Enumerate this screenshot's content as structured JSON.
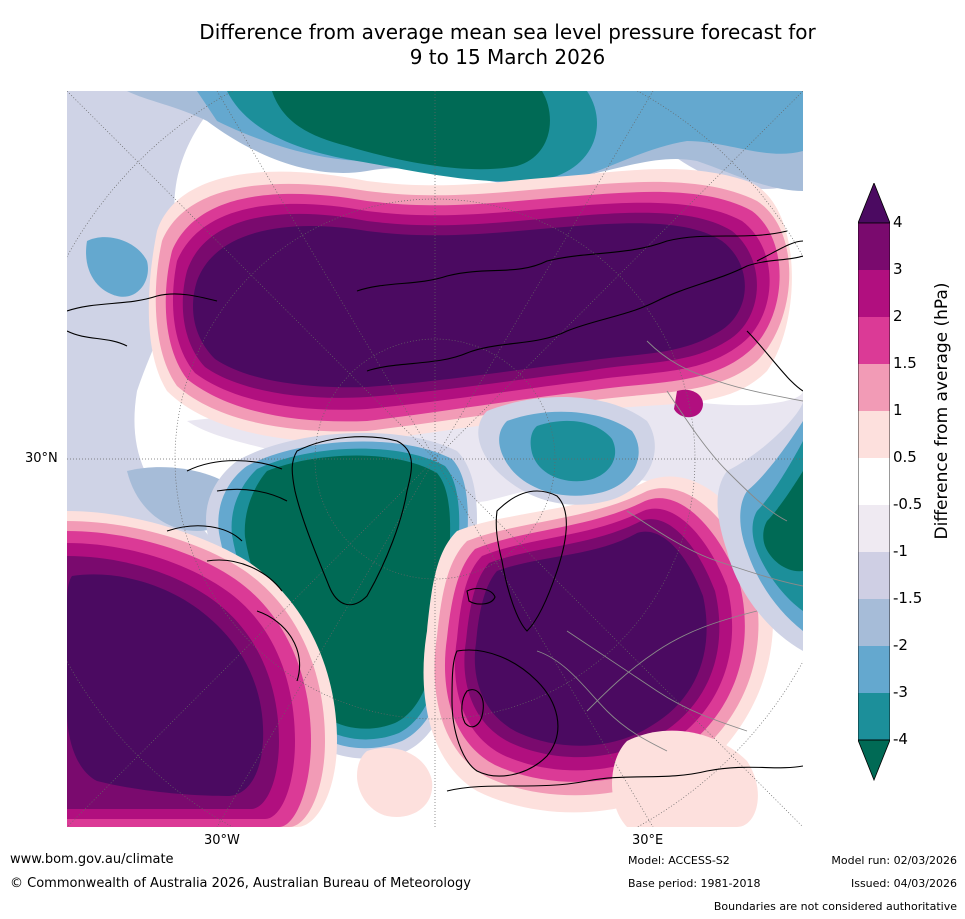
{
  "title": {
    "line1": "Difference from average mean sea level pressure forecast for",
    "line2": "9 to 15 March 2026"
  },
  "map": {
    "projection": "Northern Hemisphere polar stereographic",
    "lat_labels": [
      "30°N"
    ],
    "lon_labels": [
      "30°W",
      "30°E"
    ]
  },
  "colorbar": {
    "label": "Difference from average (hPa)",
    "ticks": [
      "4",
      "3",
      "2",
      "1.5",
      "1",
      "0.5",
      "-0.5",
      "-1",
      "-1.5",
      "-2",
      "-3",
      "-4"
    ],
    "colors": [
      "#7a0a6e",
      "#b10f7f",
      "#db3a96",
      "#f29bb6",
      "#fde0dd",
      "#ffffff",
      "#efeaf2",
      "#cfcfe4",
      "#a6bcd8",
      "#64a8cf",
      "#1c8f9a"
    ],
    "above_color": "#4b0a61",
    "below_color": "#006a55"
  },
  "footer": {
    "website": "www.bom.gov.au/climate",
    "copyright": "© Commonwealth of Australia 2026, Australian Bureau of Meteorology",
    "model": "Model: ACCESS-S2",
    "base_period": "Base period: 1981-2018",
    "model_run": "Model run: 02/03/2026",
    "issued": "Issued: 04/03/2026",
    "disclaimer": "Boundaries are not considered authoritative"
  }
}
